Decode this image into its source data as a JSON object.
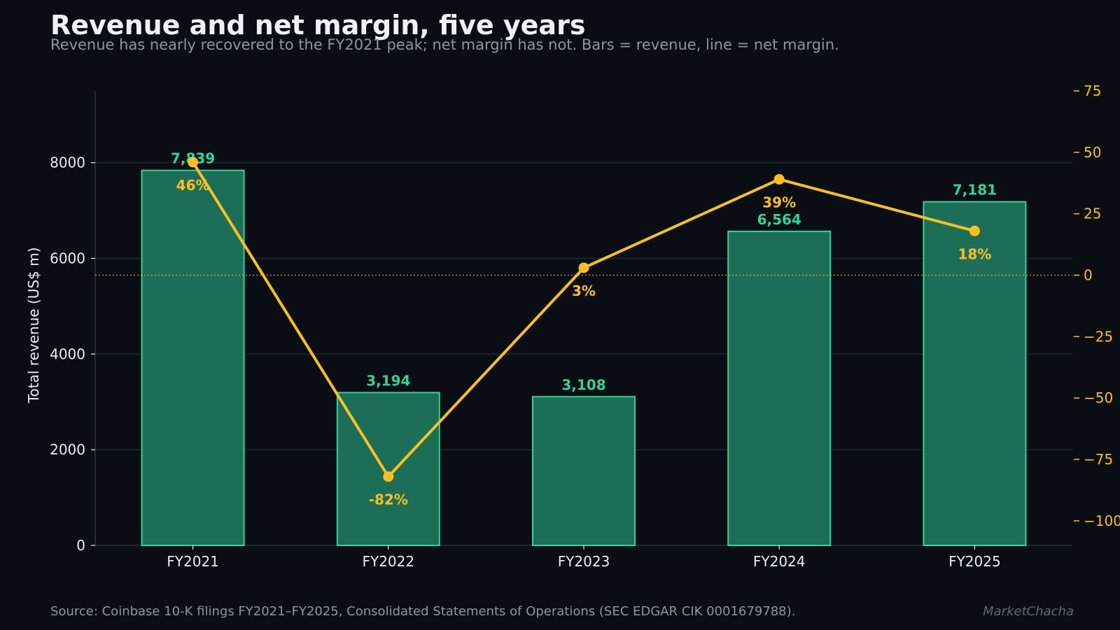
{
  "header": {
    "title": "Revenue and net margin, five years",
    "subtitle": "Revenue has nearly recovered to the FY2021 peak; net margin has not. Bars = revenue, line = net margin."
  },
  "footer": {
    "source": "Source: Coinbase 10-K filings FY2021–FY2025, Consolidated Statements of Operations (SEC EDGAR CIK 0001679788).",
    "brand": "MarketChacha"
  },
  "chart_data": {
    "type": "bar",
    "title": "Revenue and net margin, five years",
    "categories": [
      "FY2021",
      "FY2022",
      "FY2023",
      "FY2024",
      "FY2025"
    ],
    "ylabel": "Total revenue (US$ m)",
    "y2label": "",
    "ylim": [
      0,
      9500
    ],
    "y2lim": [
      -110,
      75
    ],
    "yticks": [
      0,
      2000,
      4000,
      6000,
      8000
    ],
    "y2ticks": [
      75,
      50,
      25,
      0,
      -25,
      -50,
      -75,
      -100
    ],
    "grid": true,
    "series": [
      {
        "type": "bar",
        "axis": "left",
        "values": [
          7839,
          3194,
          3108,
          6564,
          7181
        ],
        "labels": [
          "7,839",
          "3,194",
          "3,108",
          "6,564",
          "7,181"
        ]
      },
      {
        "type": "line",
        "axis": "right",
        "values": [
          46,
          -82,
          3,
          39,
          18
        ],
        "labels": [
          "46%",
          "-82%",
          "3%",
          "39%",
          "18%"
        ]
      }
    ],
    "reference_line": {
      "axis": "right",
      "value": 0,
      "style": "dotted"
    },
    "colors": {
      "bar_fill": "#1d6e57",
      "bar_stroke": "#34d399",
      "bar_label": "#34d399",
      "line": "#fbbf24",
      "line_label": "#fbbf24",
      "grid": "#1f2731",
      "axis_text": "#e8edf3",
      "background": "#0a0e14"
    }
  }
}
